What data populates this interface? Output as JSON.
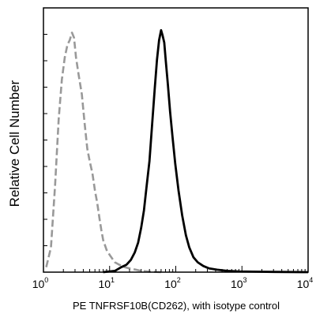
{
  "chart_data": {
    "type": "line",
    "xlabel": "PE  TNFRSF10B(CD262),  with isotype control",
    "ylabel": "Relative Cell Number",
    "xscale": "log",
    "xlim": [
      1,
      10000
    ],
    "ylim": [
      0,
      100
    ],
    "x_ticks": [
      {
        "base": "10",
        "exp": "0",
        "value": 1
      },
      {
        "base": "10",
        "exp": "1",
        "value": 10
      },
      {
        "base": "10",
        "exp": "2",
        "value": 100
      },
      {
        "base": "10",
        "exp": "3",
        "value": 1000
      },
      {
        "base": "10",
        "exp": "4",
        "value": 10000
      }
    ],
    "grid": false,
    "series": [
      {
        "role": "isotype-control",
        "color": "#999999",
        "style": "dashed",
        "points": [
          [
            1.1,
            2
          ],
          [
            1.3,
            10
          ],
          [
            1.5,
            35
          ],
          [
            1.7,
            62
          ],
          [
            1.9,
            78
          ],
          [
            2.1,
            87
          ],
          [
            2.3,
            92
          ],
          [
            2.5,
            94
          ],
          [
            2.7,
            97
          ],
          [
            2.9,
            95
          ],
          [
            3.1,
            87
          ],
          [
            3.4,
            80
          ],
          [
            3.8,
            72
          ],
          [
            4.2,
            60
          ],
          [
            4.6,
            50
          ],
          [
            5.0,
            45
          ],
          [
            5.5,
            40
          ],
          [
            6.0,
            33
          ],
          [
            6.5,
            28
          ],
          [
            7.0,
            22
          ],
          [
            7.5,
            17
          ],
          [
            8.0,
            13
          ],
          [
            9.0,
            9
          ],
          [
            10,
            7
          ],
          [
            12,
            4
          ],
          [
            14,
            3
          ],
          [
            17,
            2
          ],
          [
            20,
            1.5
          ],
          [
            25,
            1
          ],
          [
            30,
            0.5
          ],
          [
            40,
            0.2
          ],
          [
            60,
            0
          ]
        ]
      },
      {
        "role": "tnfrsf10b-stained",
        "color": "#000000",
        "style": "solid",
        "points": [
          [
            8,
            0
          ],
          [
            12,
            0.5
          ],
          [
            15,
            2
          ],
          [
            18,
            3
          ],
          [
            21,
            5
          ],
          [
            24,
            8
          ],
          [
            27,
            12
          ],
          [
            30,
            18
          ],
          [
            33,
            25
          ],
          [
            36,
            34
          ],
          [
            40,
            45
          ],
          [
            44,
            60
          ],
          [
            48,
            74
          ],
          [
            52,
            86
          ],
          [
            56,
            94
          ],
          [
            60,
            98
          ],
          [
            63,
            96
          ],
          [
            67,
            93
          ],
          [
            71,
            85
          ],
          [
            76,
            76
          ],
          [
            82,
            65
          ],
          [
            89,
            55
          ],
          [
            98,
            44
          ],
          [
            110,
            33
          ],
          [
            125,
            23
          ],
          [
            142,
            15
          ],
          [
            160,
            10
          ],
          [
            185,
            6
          ],
          [
            215,
            4
          ],
          [
            260,
            2.5
          ],
          [
            320,
            1.5
          ],
          [
            420,
            1
          ],
          [
            600,
            0.5
          ],
          [
            900,
            0.3
          ],
          [
            1500,
            0.2
          ],
          [
            3000,
            0.1
          ],
          [
            10000,
            0
          ]
        ]
      }
    ]
  }
}
